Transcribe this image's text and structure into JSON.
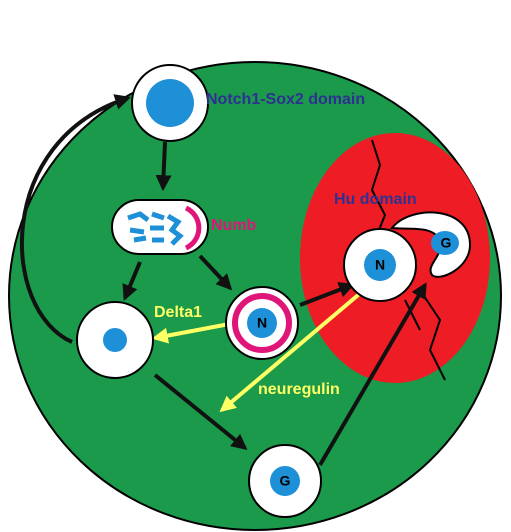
{
  "labels": {
    "notch_domain": "Notch1-Sox2 domain",
    "numb": "Numb",
    "hu_domain": "Hu domain",
    "delta": "Delta1",
    "neuregulin": "neuregulin"
  },
  "nodes": [
    {
      "label": "N"
    },
    {
      "label": "N"
    },
    {
      "label": "G"
    },
    {
      "label": "G"
    }
  ]
}
